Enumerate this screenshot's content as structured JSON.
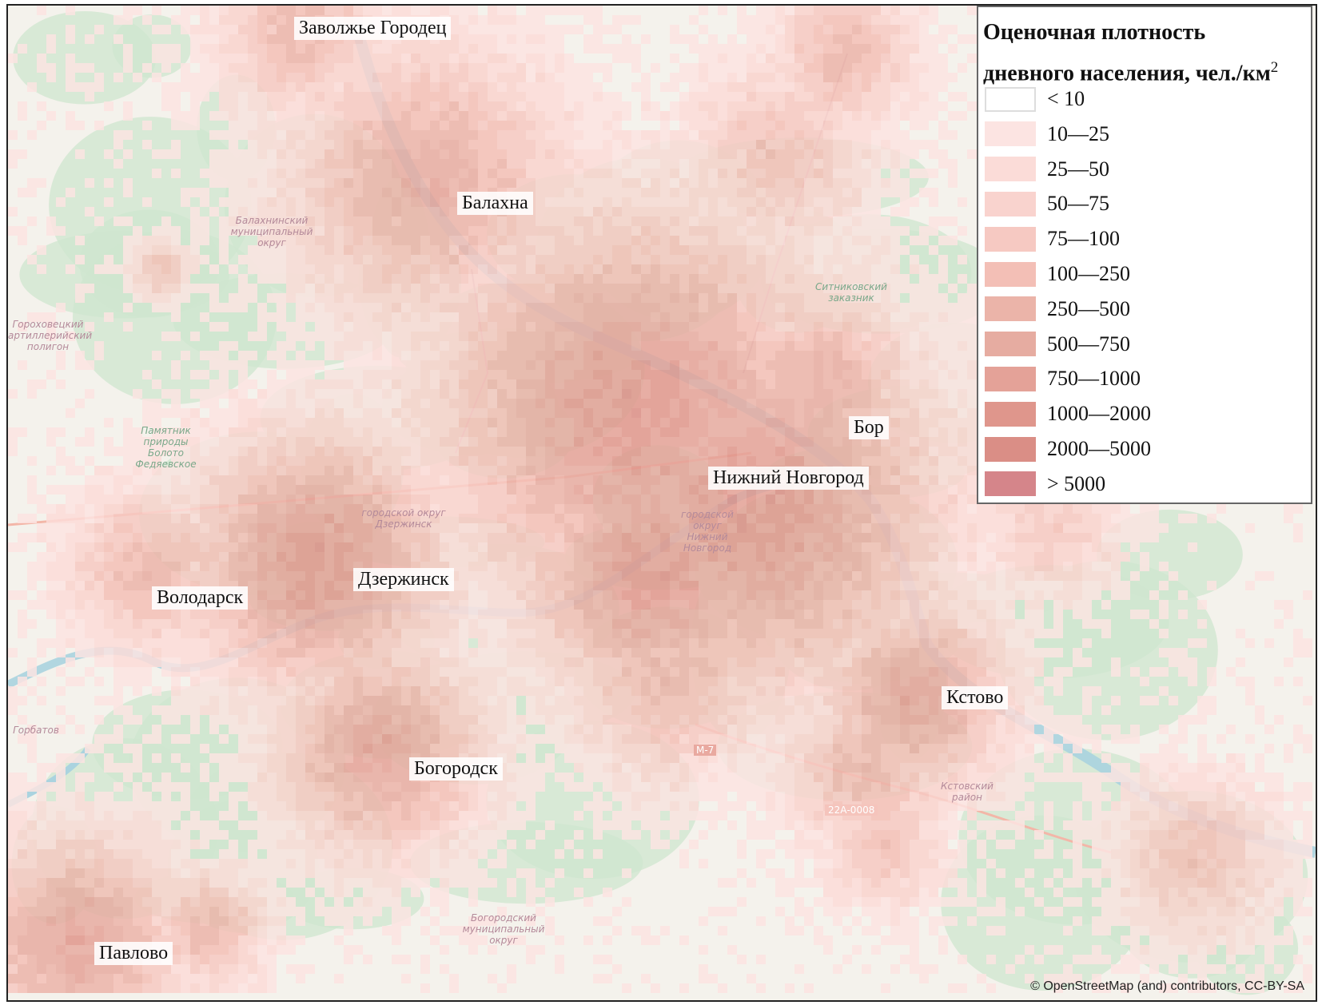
{
  "legend": {
    "title_line1": "Оценочная плотность",
    "title_line2": "дневного населения, чел./км",
    "title_sup": "2",
    "classes": [
      {
        "label": "< 10",
        "color": "#ffffff"
      },
      {
        "label": "10—25",
        "color": "#fce4e2"
      },
      {
        "label": "25—50",
        "color": "#fbdcd8"
      },
      {
        "label": "50—75",
        "color": "#f9d3ce"
      },
      {
        "label": "75—100",
        "color": "#f6c9c2"
      },
      {
        "label": "100—250",
        "color": "#f3bfb6"
      },
      {
        "label": "250—500",
        "color": "#ebb4a9"
      },
      {
        "label": "500—750",
        "color": "#e6aca1"
      },
      {
        "label": "750—1000",
        "color": "#e4a298"
      },
      {
        "label": "1000—2000",
        "color": "#df968c"
      },
      {
        "label": "2000—5000",
        "color": "#da8e86"
      },
      {
        "label": "> 5000",
        "color": "#d5858a"
      }
    ]
  },
  "cities": [
    {
      "name": "Заволжье Городец"
    },
    {
      "name": "Балахна"
    },
    {
      "name": "Бор"
    },
    {
      "name": "Нижний Новгород"
    },
    {
      "name": "Дзержинск"
    },
    {
      "name": "Володарск"
    },
    {
      "name": "Кстово"
    },
    {
      "name": "Богородск"
    },
    {
      "name": "Павлово"
    }
  ],
  "basemap_labels": {
    "balakhna_district": "Балахнинский муниципальный округ",
    "sitnikovsky": "Ситниковский заказник",
    "bog": "Памятник природы Болото Федяевское",
    "dzerzhinsk_district": "городской округ Дзержинск",
    "nn_district": "городской округ Нижний Новгород",
    "kstovo_district": "Кстовский район",
    "bogorodsk_district": "Богородский муниципальный округ",
    "gorbatov": "Горбатов",
    "road_22a": "22А-0008",
    "road_m7": "М-7",
    "polygon": "Гороховецкий артиллерийский полигон"
  },
  "attribution": "© OpenStreetMap (and) contributors, CC-BY-SA",
  "colors": {
    "water": "#aad3df",
    "forest": "#cfe6cf",
    "land": "#f4f2ec",
    "frame": "#222222"
  }
}
